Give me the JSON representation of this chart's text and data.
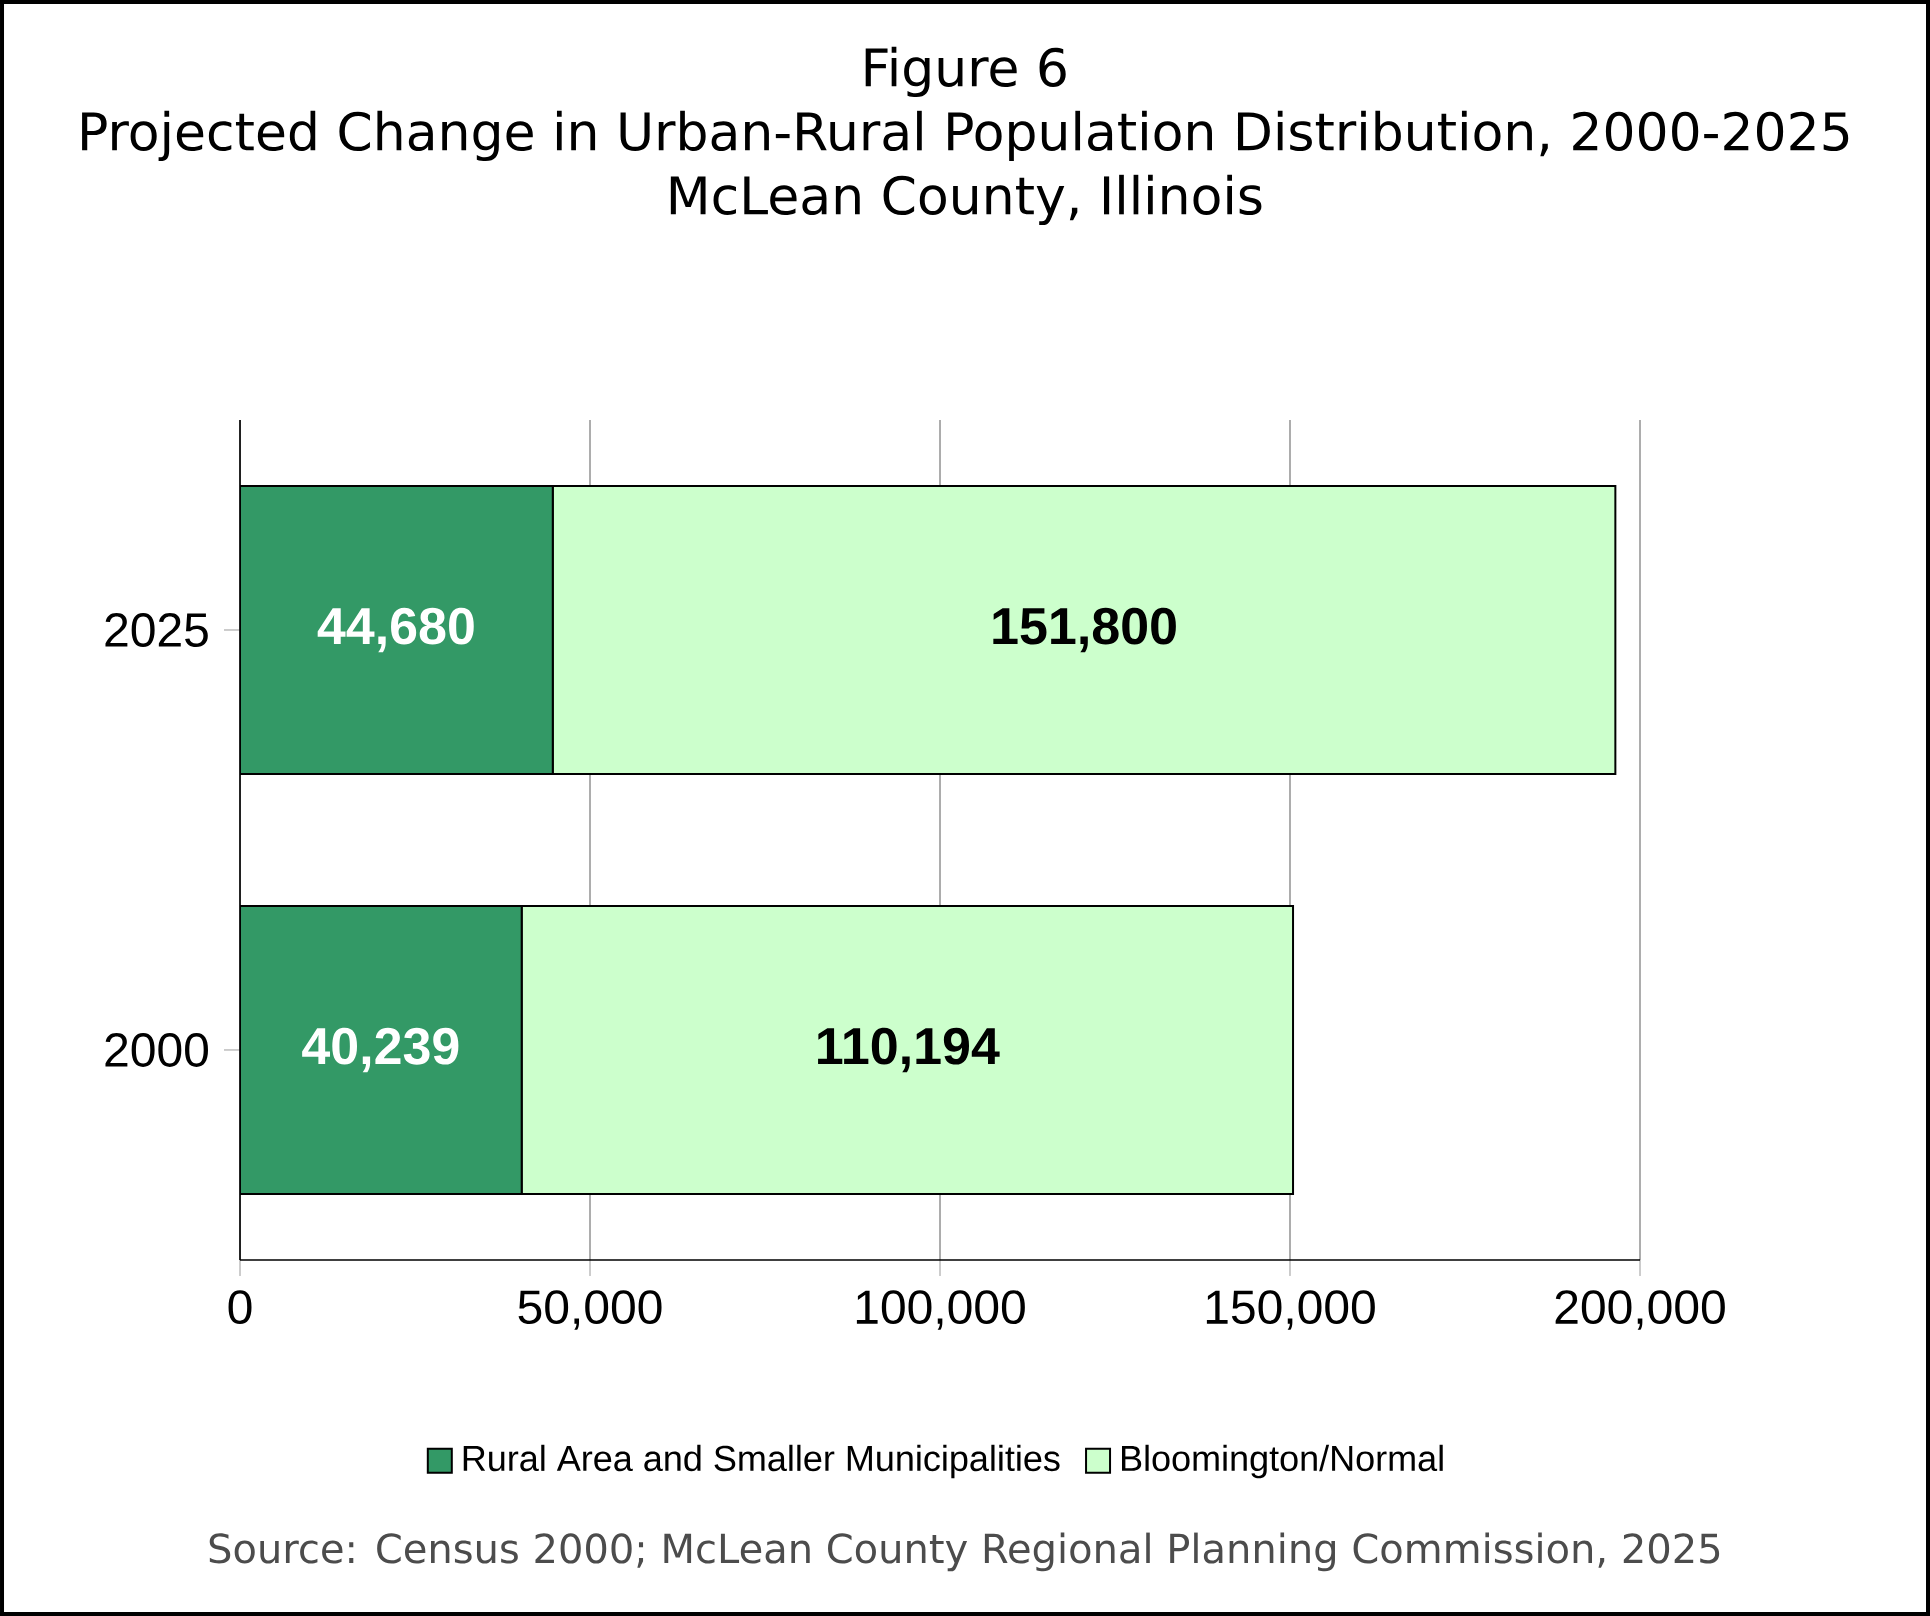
{
  "chart_data": {
    "type": "bar",
    "orientation": "horizontal",
    "stacked": true,
    "title": "Figure 6",
    "subtitle": "Projected Change in Urban-Rural Population Distribution, 2000-2025",
    "annotations": [
      "McLean County, Illinois",
      "Source: Census 2000; McLean County Regional Planning Commission, 2025"
    ],
    "categories": [
      "2025",
      "2000"
    ],
    "series": [
      {
        "name": "Rural Area and Smaller Municipalities",
        "color": "#339966",
        "values": [
          44680,
          40239
        ],
        "value_labels": [
          "44,680",
          "40,239"
        ]
      },
      {
        "name": "Bloomington/Normal",
        "color": "#ccffcc",
        "values": [
          151800,
          110194
        ],
        "value_labels": [
          "151,800",
          "110,194"
        ]
      }
    ],
    "xlim": [
      0,
      200000
    ],
    "xticks": [
      0,
      {
        "value": 50000,
        "label": "50,000"
      },
      {
        "value": 100000,
        "label": "100,000"
      },
      {
        "value": 150000,
        "label": "150,000"
      },
      {
        "value": 200000,
        "label": "200,000"
      }
    ],
    "grid": "x",
    "legend": "bottom"
  }
}
